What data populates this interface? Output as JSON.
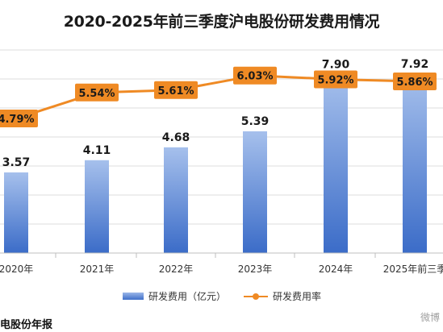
{
  "chart_data": {
    "type": "bar",
    "title": "2020-2025年前三季度沪电股份研发费用情况",
    "categories": [
      "2020年",
      "2021年",
      "2022年",
      "2023年",
      "2024年",
      "2025年前三季"
    ],
    "series": [
      {
        "name": "研发费用（亿元）",
        "type": "bar",
        "values": [
          3.57,
          4.11,
          4.68,
          5.39,
          7.9,
          7.92
        ],
        "labels": [
          "3.57",
          "4.11",
          "4.68",
          "5.39",
          "7.90",
          "7.92"
        ]
      },
      {
        "name": "研发费用率",
        "type": "line",
        "values": [
          4.79,
          5.54,
          5.61,
          6.03,
          5.92,
          5.86
        ],
        "labels": [
          "4.79%",
          "5.54%",
          "5.61%",
          "6.03%",
          "5.92%",
          "5.86%"
        ]
      }
    ],
    "xlabel": "",
    "ylabel": "",
    "legend_position": "bottom",
    "grid": true
  },
  "source_text": "电股份年报",
  "watermark": "微博",
  "colors": {
    "bar_top": "#a6c0ec",
    "bar_bottom": "#3b6cc8",
    "line": "#ef8a24",
    "label_box": "#ef8a24",
    "grid": "#d9d9d9"
  }
}
